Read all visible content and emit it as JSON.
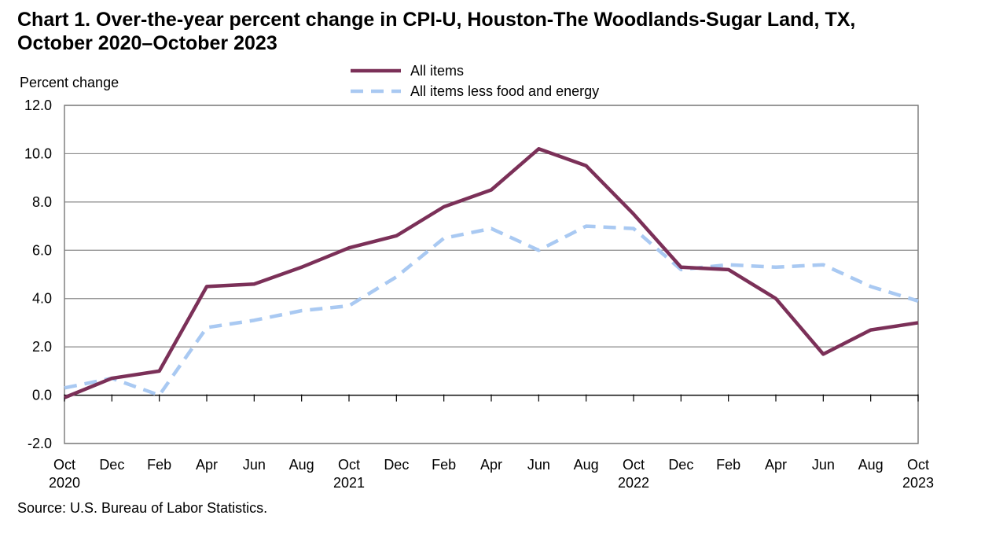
{
  "chart_data": {
    "type": "line",
    "title_lines": [
      "Chart 1. Over-the-year percent change in CPI-U, Houston-The  Woodlands-Sugar Land, TX,",
      "October 2020–October  2023"
    ],
    "ylabel": "Percent change",
    "ylim": [
      -2.0,
      12.0
    ],
    "yticks": [
      "12.0",
      "10.0",
      "8.0",
      "6.0",
      "4.0",
      "2.0",
      "0.0",
      "-2.0"
    ],
    "x_tick_labels": [
      "Oct",
      "Dec",
      "Feb",
      "Apr",
      "Jun",
      "Aug",
      "Oct",
      "Dec",
      "Feb",
      "Apr",
      "Jun",
      "Aug",
      "Oct",
      "Dec",
      "Feb",
      "Apr",
      "Jun",
      "Aug",
      "Oct"
    ],
    "x_year_labels": [
      "2020",
      "",
      "",
      "",
      "",
      "",
      "2021",
      "",
      "",
      "",
      "",
      "",
      "2022",
      "",
      "",
      "",
      "",
      "",
      "2023"
    ],
    "grid": true,
    "legend_position": "top-center",
    "series": [
      {
        "name": "All items",
        "color": "#7b3058",
        "style": "solid",
        "values": [
          -0.1,
          0.7,
          1.0,
          4.5,
          4.6,
          5.3,
          6.1,
          6.6,
          7.8,
          8.5,
          10.2,
          9.5,
          7.5,
          5.3,
          5.2,
          4.0,
          1.7,
          2.7,
          3.0
        ]
      },
      {
        "name": "All items less food and energy",
        "color": "#a9c9f2",
        "style": "dashed",
        "values": [
          0.3,
          0.7,
          0.0,
          2.8,
          3.1,
          3.5,
          3.7,
          4.9,
          6.5,
          6.9,
          6.0,
          7.0,
          6.9,
          5.2,
          5.4,
          5.3,
          5.4,
          4.5,
          3.9
        ]
      }
    ]
  },
  "source": "Source: U.S. Bureau of Labor Statistics."
}
